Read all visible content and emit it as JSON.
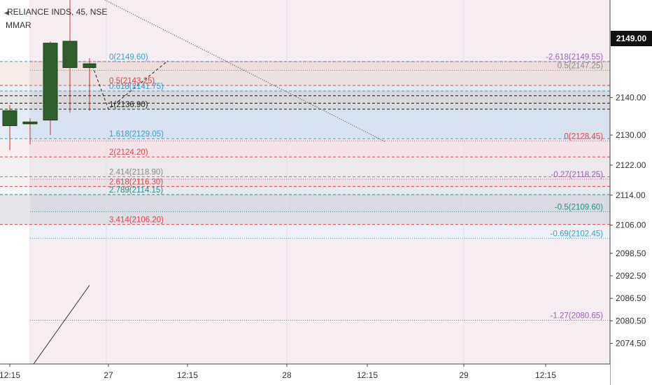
{
  "header": {
    "symbol_line": "RELIANCE INDS, 45, NSE",
    "indicator": "MMAR",
    "collapse_icon": "chevron-left-icon"
  },
  "last_price": "2149.00",
  "colors": {
    "candle_body": "#2e5e2a",
    "candle_wick": "#c0392b",
    "fib_blue": "#3d9cc4",
    "fib_red": "#e0404a",
    "fib_gray": "#8a8a8a",
    "fib_black": "#222222",
    "fib_teal": "#2a8a8a",
    "fib_purple": "#9a5fb0",
    "price_axis_bg": "#111111"
  },
  "chart_data": {
    "type": "candlestick",
    "title": "RELIANCE INDS, 45, NSE",
    "y_axis": {
      "ylim": [
        2069,
        2166
      ],
      "ticks": [
        "2140.00",
        "2130.00",
        "2122.00",
        "2114.00",
        "2106.00",
        "2098.50",
        "2092.50",
        "2086.50",
        "2080.50",
        "2074.50"
      ],
      "tick_values": [
        2140,
        2130,
        2122,
        2114,
        2106,
        2098.5,
        2092.5,
        2086.5,
        2080.5,
        2074.5
      ]
    },
    "x_axis": {
      "labels": [
        "12:15",
        "27",
        "12:15",
        "28",
        "12:15",
        "29",
        "12:15"
      ]
    },
    "candles": [
      {
        "open": 2136.5,
        "high": 2138.0,
        "low": 2126.0,
        "close": 2132.5
      },
      {
        "open": 2133.5,
        "high": 2134.5,
        "low": 2127.5,
        "close": 2133.0
      },
      {
        "open": 2134.0,
        "high": 2155.0,
        "low": 2130.0,
        "close": 2154.5
      },
      {
        "open": 2155.0,
        "high": 2166.0,
        "low": 2136.0,
        "close": 2148.0
      },
      {
        "open": 2149.0,
        "high": 2150.5,
        "low": 2136.5,
        "close": 2148.0
      }
    ],
    "fib_left": [
      {
        "label": "0(2149.60)",
        "price": 2149.6,
        "color": "#3d9cc4"
      },
      {
        "label": "0.5(2143.25)",
        "price": 2143.25,
        "color": "#e0404a"
      },
      {
        "label": "0.618(2141.75)",
        "price": 2141.75,
        "color": "#3d9cc4"
      },
      {
        "label": "1(2136.90)",
        "price": 2136.9,
        "color": "#222222"
      },
      {
        "label": "1.618(2129.05)",
        "price": 2129.05,
        "color": "#3d9cc4"
      },
      {
        "label": "2(2124.20)",
        "price": 2124.2,
        "color": "#e0404a"
      },
      {
        "label": "2.414(2118.90)",
        "price": 2118.9,
        "color": "#8a8a8a"
      },
      {
        "label": "2.618(2116.30)",
        "price": 2116.3,
        "color": "#e0404a"
      },
      {
        "label": "2.789(2114.15)",
        "price": 2114.15,
        "color": "#2a8a8a"
      },
      {
        "label": "3.414(2106.20)",
        "price": 2106.2,
        "color": "#e0404a"
      }
    ],
    "fib_right": [
      {
        "label": "-2.618(2149.55)",
        "price": 2149.55,
        "color": "#9a5fb0"
      },
      {
        "label": "0.5(2147.25)",
        "price": 2147.25,
        "color": "#8a8a8a"
      },
      {
        "label": "0(2128.45)",
        "price": 2128.45,
        "color": "#e0404a"
      },
      {
        "label": "-0.27(2118.25)",
        "price": 2118.25,
        "color": "#9a5fb0"
      },
      {
        "label": "-0.5(2109.60)",
        "price": 2109.6,
        "color": "#2a8a8a"
      },
      {
        "label": "-0.69(2102.45)",
        "price": 2102.45,
        "color": "#3d9cc4"
      },
      {
        "label": "-1.27(2080.65)",
        "price": 2080.65,
        "color": "#9a5fb0"
      }
    ],
    "extra_lines": [
      2140.5,
      2138.5
    ]
  }
}
